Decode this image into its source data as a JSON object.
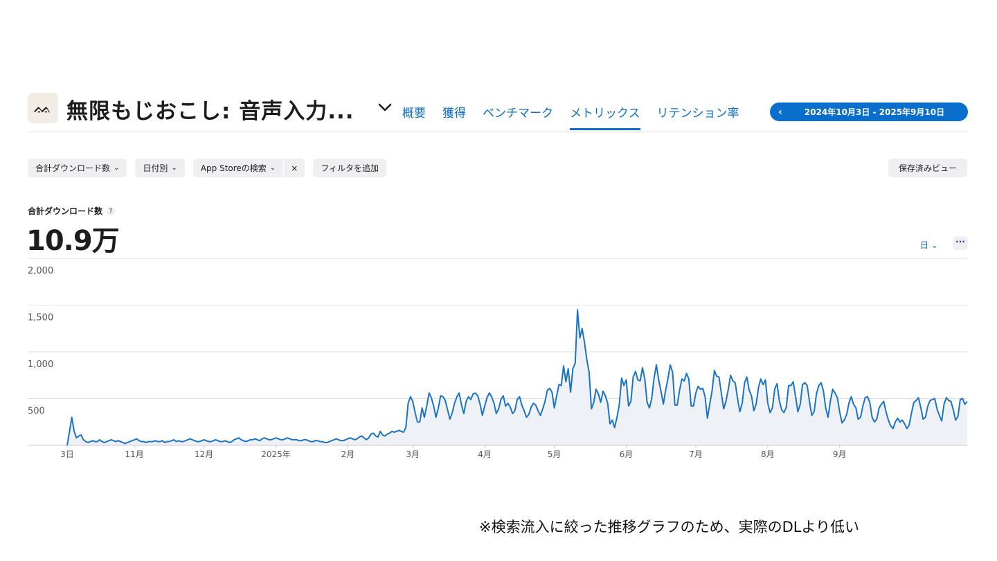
{
  "header": {
    "app_icon_text": "ᨐ",
    "app_title": "無限もじおこし: 音声入力...",
    "tabs": [
      {
        "label": "概要",
        "active": false
      },
      {
        "label": "獲得",
        "active": false
      },
      {
        "label": "ベンチマーク",
        "active": false
      },
      {
        "label": "メトリックス",
        "active": true
      },
      {
        "label": "リテンション率",
        "active": false
      }
    ],
    "date_range": "2024年10月3日 - 2025年9月10日",
    "prev_icon": "‹"
  },
  "filters": {
    "metric_chip": "合計ダウンロード数",
    "date_chip": "日付別",
    "source_chip": "App Storeの検索",
    "remove_icon": "×",
    "add_filter": "フィルタを追加",
    "saved_view": "保存済みビュー",
    "chevron": "⌄"
  },
  "metric": {
    "label": "合計ダウンロード数",
    "help": "?",
    "value": "10.9万",
    "granularity": "日",
    "more": "···"
  },
  "chart_data": {
    "type": "area",
    "line_color": "#1a73c4",
    "fill_color": "#eef1f5",
    "ylim": [
      0,
      2000
    ],
    "yticks": [
      "2,000",
      "1,500",
      "1,000",
      "500"
    ],
    "ytick_values": [
      2000,
      1500,
      1000,
      500
    ],
    "xticks": [
      "3日",
      "11月",
      "12月",
      "2025年",
      "2月",
      "3月",
      "4月",
      "5月",
      "6月",
      "7月",
      "8月",
      "9月"
    ],
    "x_start": "2024-10-03",
    "xtick_dates": [
      "2024-10-03",
      "2024-11-01",
      "2024-12-01",
      "2025-01-01",
      "2025-02-01",
      "2025-03-01",
      "2025-04-01",
      "2025-05-01",
      "2025-06-01",
      "2025-07-01",
      "2025-08-01",
      "2025-09-01"
    ],
    "values": [
      0,
      150,
      300,
      150,
      80,
      100,
      110,
      60,
      40,
      30,
      40,
      50,
      40,
      40,
      60,
      40,
      30,
      40,
      50,
      60,
      50,
      40,
      50,
      40,
      30,
      20,
      30,
      40,
      50,
      60,
      70,
      50,
      40,
      40,
      30,
      40,
      40,
      40,
      50,
      40,
      40,
      50,
      30,
      40,
      40,
      50,
      60,
      40,
      50,
      40,
      40,
      50,
      60,
      70,
      60,
      50,
      40,
      40,
      50,
      60,
      50,
      40,
      40,
      50,
      60,
      50,
      40,
      40,
      50,
      40,
      30,
      40,
      60,
      70,
      80,
      60,
      50,
      40,
      50,
      60,
      60,
      70,
      60,
      50,
      70,
      80,
      70,
      60,
      60,
      70,
      80,
      70,
      60,
      60,
      70,
      80,
      70,
      60,
      60,
      60,
      50,
      50,
      60,
      60,
      50,
      40,
      40,
      50,
      50,
      40,
      40,
      30,
      30,
      40,
      50,
      60,
      70,
      60,
      50,
      50,
      60,
      70,
      80,
      70,
      60,
      70,
      90,
      100,
      80,
      60,
      80,
      120,
      130,
      100,
      90,
      150,
      110,
      100,
      120,
      130,
      150,
      140,
      150,
      160,
      150,
      140,
      190,
      450,
      520,
      470,
      350,
      250,
      250,
      400,
      300,
      420,
      560,
      510,
      420,
      300,
      400,
      530,
      520,
      480,
      380,
      280,
      350,
      450,
      520,
      560,
      430,
      340,
      470,
      520,
      490,
      550,
      560,
      530,
      440,
      320,
      420,
      510,
      560,
      520,
      450,
      340,
      390,
      490,
      530,
      420,
      450,
      410,
      340,
      370,
      490,
      520,
      430,
      370,
      300,
      330,
      410,
      450,
      430,
      370,
      320,
      390,
      470,
      590,
      610,
      570,
      400,
      530,
      650,
      640,
      850,
      680,
      820,
      570,
      820,
      880,
      1450,
      1150,
      1250,
      1100,
      920,
      780,
      390,
      460,
      600,
      550,
      460,
      580,
      530,
      450,
      230,
      270,
      190,
      300,
      430,
      720,
      640,
      700,
      420,
      470,
      730,
      790,
      700,
      690,
      830,
      710,
      460,
      400,
      500,
      720,
      860,
      700,
      580,
      440,
      590,
      720,
      860,
      780,
      430,
      430,
      590,
      710,
      690,
      770,
      710,
      420,
      420,
      560,
      630,
      600,
      610,
      520,
      290,
      440,
      580,
      800,
      740,
      730,
      560,
      390,
      470,
      600,
      750,
      690,
      670,
      500,
      360,
      450,
      670,
      730,
      590,
      530,
      370,
      440,
      620,
      710,
      650,
      700,
      450,
      350,
      400,
      600,
      660,
      480,
      380,
      350,
      410,
      640,
      640,
      680,
      520,
      360,
      440,
      650,
      670,
      640,
      470,
      320,
      360,
      550,
      640,
      670,
      580,
      400,
      300,
      470,
      600,
      560,
      510,
      360,
      240,
      270,
      330,
      450,
      520,
      440,
      400,
      280,
      300,
      420,
      510,
      520,
      460,
      300,
      250,
      280,
      400,
      440,
      470,
      360,
      270,
      210,
      180,
      250,
      290,
      250,
      270,
      230,
      180,
      220,
      350,
      460,
      480,
      510,
      400,
      280,
      300,
      420,
      480,
      490,
      500,
      390,
      320,
      260,
      440,
      510,
      480,
      470,
      380,
      270,
      310,
      490,
      500,
      440,
      470
    ]
  },
  "footnote": "※検索流入に絞った推移グラフのため、実際のDLより低い"
}
